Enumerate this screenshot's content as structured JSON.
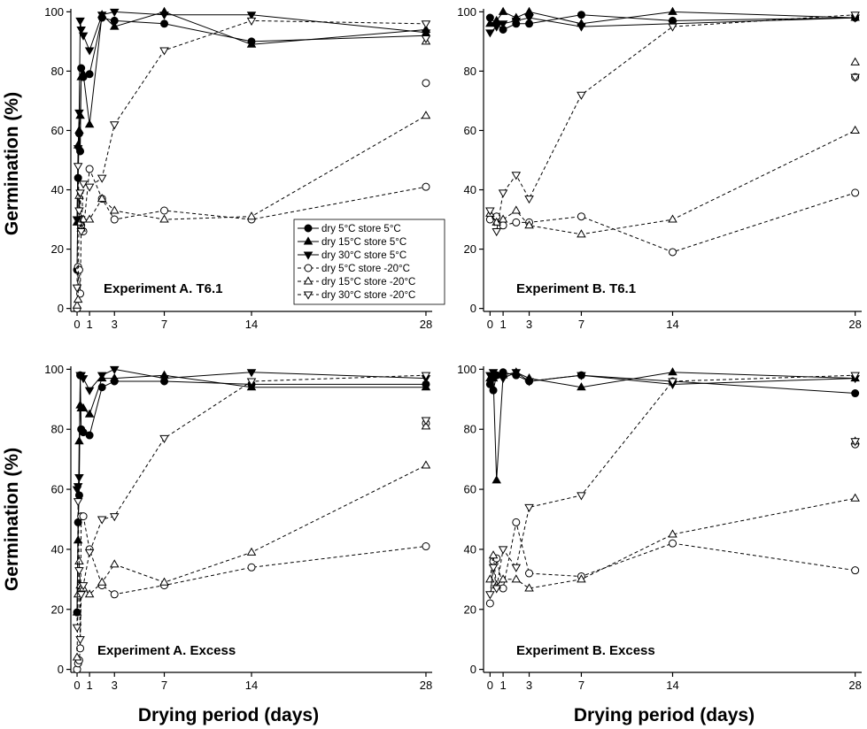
{
  "figure": {
    "ylabel": "Germination (%)",
    "xlabel": "Drying period (days)"
  },
  "legend": [
    {
      "label": "dry 5°C  store 5°C",
      "marker": "circle-filled",
      "dash": "solid"
    },
    {
      "label": "dry 15°C  store 5°C",
      "marker": "triangle-up-filled",
      "dash": "solid"
    },
    {
      "label": "dry 30°C  store 5°C",
      "marker": "triangle-down-filled",
      "dash": "solid"
    },
    {
      "label": "dry 5°C  store -20°C",
      "marker": "circle-open",
      "dash": "dashed"
    },
    {
      "label": "dry 15°C  store -20°C",
      "marker": "triangle-up-open",
      "dash": "dashed"
    },
    {
      "label": "dry 30°C  store -20°C",
      "marker": "triangle-down-open",
      "dash": "dashed"
    }
  ],
  "chart_data": [
    {
      "type": "line",
      "panel": "top-left",
      "title": "Experiment A. T6.1",
      "xlim": [
        -0.5,
        28.5
      ],
      "ylim": [
        -1,
        101
      ],
      "xticks": [
        0,
        1,
        3,
        7,
        14,
        28
      ],
      "yticks": [
        0,
        20,
        40,
        60,
        80,
        100
      ],
      "series": [
        {
          "name": "dry 5°C  store 5°C",
          "x": [
            0,
            0.08,
            0.17,
            0.25,
            0.33,
            0.5,
            1,
            2,
            3,
            7,
            14,
            28
          ],
          "y": [
            13,
            44,
            59,
            53,
            81,
            78,
            79,
            98,
            97,
            96,
            90,
            92
          ]
        },
        {
          "name": "dry 15°C  store 5°C",
          "x": [
            0,
            0.08,
            0.17,
            0.25,
            0.33,
            0.5,
            1,
            2,
            3,
            7,
            14,
            28
          ],
          "y": [
            29,
            55,
            60,
            65,
            78,
            79,
            62,
            99,
            95,
            100,
            89,
            94
          ]
        },
        {
          "name": "dry 30°C  store 5°C",
          "x": [
            0,
            0.08,
            0.17,
            0.25,
            0.33,
            0.5,
            1,
            2,
            3,
            7,
            14,
            28
          ],
          "y": [
            30,
            54,
            66,
            97,
            94,
            92,
            87,
            99,
            100,
            99,
            99,
            93
          ]
        },
        {
          "name": "dry 5°C  store -20°C",
          "x": [
            0,
            0.08,
            0.17,
            0.25,
            0.33,
            0.5,
            1,
            2,
            3,
            7,
            14,
            28
          ],
          "y": [
            0,
            14,
            13,
            5,
            28,
            26,
            47,
            37,
            30,
            33,
            30,
            41
          ]
        },
        {
          "name": "dry 15°C  store -20°C",
          "x": [
            0,
            0.08,
            0.17,
            0.25,
            0.33,
            0.5,
            1,
            2,
            3,
            7,
            14,
            28
          ],
          "y": [
            1,
            3,
            38,
            29,
            27,
            30,
            30,
            37,
            33,
            30,
            31,
            65
          ]
        },
        {
          "name": "dry 30°C  store -20°C",
          "x": [
            0,
            0.08,
            0.17,
            0.25,
            0.33,
            0.5,
            1,
            2,
            3,
            7,
            14,
            28
          ],
          "y": [
            7,
            48,
            33,
            39,
            26,
            42,
            41,
            44,
            62,
            87,
            97,
            96
          ]
        }
      ],
      "extra_points": [
        {
          "series": "dry 5°C  store -20°C",
          "x": 28,
          "y": 76
        },
        {
          "series": "dry 15°C  store -20°C",
          "x": 28,
          "y": 90
        },
        {
          "series": "dry 30°C  store -20°C",
          "x": 28,
          "y": 91
        }
      ]
    },
    {
      "type": "line",
      "panel": "top-right",
      "title": "Experiment B. T6.1",
      "xlim": [
        -0.5,
        28.5
      ],
      "ylim": [
        -1,
        101
      ],
      "xticks": [
        0,
        1,
        3,
        7,
        14,
        28
      ],
      "yticks": [
        0,
        20,
        40,
        60,
        80,
        100
      ],
      "series": [
        {
          "name": "dry 5°C  store 5°C",
          "x": [
            0,
            0.5,
            1,
            2,
            3,
            7,
            14,
            28
          ],
          "y": [
            98,
            96,
            94,
            96,
            96,
            99,
            97,
            98
          ]
        },
        {
          "name": "dry 15°C  store 5°C",
          "x": [
            0,
            0.5,
            1,
            2,
            3,
            7,
            14,
            28
          ],
          "y": [
            96,
            97,
            100,
            98,
            100,
            96,
            100,
            98
          ]
        },
        {
          "name": "dry 30°C  store 5°C",
          "x": [
            0,
            0.5,
            1,
            2,
            3,
            7,
            14,
            28
          ],
          "y": [
            93,
            95,
            96,
            97,
            98,
            95,
            96,
            98
          ]
        },
        {
          "name": "dry 5°C  store -20°C",
          "x": [
            0,
            0.5,
            1,
            2,
            3,
            7,
            14,
            28
          ],
          "y": [
            30,
            31,
            28,
            29,
            29,
            31,
            19,
            39
          ]
        },
        {
          "name": "dry 15°C  store -20°C",
          "x": [
            0,
            0.5,
            1,
            2,
            3,
            7,
            14,
            28
          ],
          "y": [
            32,
            29,
            30,
            33,
            28,
            25,
            30,
            60
          ]
        },
        {
          "name": "dry 30°C  store -20°C",
          "x": [
            0,
            0.5,
            1,
            2,
            3,
            7,
            14,
            28
          ],
          "y": [
            33,
            26,
            39,
            45,
            37,
            72,
            95,
            99
          ]
        }
      ],
      "extra_points": [
        {
          "series": "dry 5°C  store -20°C",
          "x": 28,
          "y": 78
        },
        {
          "series": "dry 15°C  store -20°C",
          "x": 28,
          "y": 83
        },
        {
          "series": "dry 30°C  store -20°C",
          "x": 28,
          "y": 78
        }
      ]
    },
    {
      "type": "line",
      "panel": "bottom-left",
      "title": "Experiment A. Excess",
      "xlim": [
        -0.5,
        28.5
      ],
      "ylim": [
        -1,
        101
      ],
      "xticks": [
        0,
        1,
        3,
        7,
        14,
        28
      ],
      "yticks": [
        0,
        20,
        40,
        60,
        80,
        100
      ],
      "series": [
        {
          "name": "dry 5°C  store 5°C",
          "x": [
            0,
            0.08,
            0.17,
            0.25,
            0.33,
            0.5,
            1,
            2,
            3,
            7,
            14,
            28
          ],
          "y": [
            19,
            49,
            58,
            98,
            80,
            79,
            78,
            94,
            96,
            96,
            95,
            95
          ]
        },
        {
          "name": "dry 15°C  store 5°C",
          "x": [
            0,
            0.08,
            0.17,
            0.25,
            0.33,
            0.5,
            1,
            2,
            3,
            7,
            14,
            28
          ],
          "y": [
            19,
            43,
            76,
            88,
            87,
            87,
            85,
            97,
            97,
            98,
            94,
            94
          ]
        },
        {
          "name": "dry 30°C  store 5°C",
          "x": [
            0,
            0.08,
            0.17,
            0.25,
            0.33,
            0.5,
            1,
            2,
            3,
            7,
            14,
            28
          ],
          "y": [
            60,
            61,
            64,
            98,
            98,
            97,
            93,
            98,
            100,
            97,
            99,
            97
          ]
        },
        {
          "name": "dry 5°C  store -20°C",
          "x": [
            0,
            0.08,
            0.17,
            0.25,
            0.33,
            0.5,
            1,
            2,
            3,
            7,
            14,
            28
          ],
          "y": [
            0,
            2,
            3,
            7,
            51,
            51,
            40,
            28,
            25,
            28,
            34,
            41
          ]
        },
        {
          "name": "dry 15°C  store -20°C",
          "x": [
            0,
            0.08,
            0.17,
            0.25,
            0.33,
            0.5,
            1,
            2,
            3,
            7,
            14,
            28
          ],
          "y": [
            4,
            25,
            36,
            28,
            27,
            27,
            25,
            29,
            35,
            29,
            39,
            68
          ]
        },
        {
          "name": "dry 30°C  store -20°C",
          "x": [
            0,
            0.08,
            0.17,
            0.25,
            0.33,
            0.5,
            1,
            2,
            3,
            7,
            14,
            28
          ],
          "y": [
            14,
            56,
            33,
            10,
            25,
            28,
            39,
            50,
            51,
            77,
            96,
            98
          ]
        }
      ],
      "extra_points": [
        {
          "series": "dry 5°C  store -20°C",
          "x": 28,
          "y": 82
        },
        {
          "series": "dry 15°C  store -20°C",
          "x": 28,
          "y": 81
        },
        {
          "series": "dry 30°C  store -20°C",
          "x": 28,
          "y": 83
        }
      ]
    },
    {
      "type": "line",
      "panel": "bottom-right",
      "title": "Experiment B. Excess",
      "xlim": [
        -0.5,
        28.5
      ],
      "ylim": [
        -1,
        101
      ],
      "xticks": [
        0,
        1,
        3,
        7,
        14,
        28
      ],
      "yticks": [
        0,
        20,
        40,
        60,
        80,
        100
      ],
      "series": [
        {
          "name": "dry 5°C  store 5°C",
          "x": [
            0,
            0.25,
            0.5,
            1,
            2,
            3,
            7,
            14,
            28
          ],
          "y": [
            95,
            93,
            98,
            99,
            98,
            96,
            98,
            96,
            92
          ]
        },
        {
          "name": "dry 15°C  store 5°C",
          "x": [
            0,
            0.25,
            0.5,
            1,
            2,
            3,
            7,
            14,
            28
          ],
          "y": [
            97,
            97,
            63,
            98,
            99,
            97,
            94,
            99,
            97
          ]
        },
        {
          "name": "dry 30°C  store 5°C",
          "x": [
            0,
            0.25,
            0.5,
            1,
            2,
            3,
            7,
            14,
            28
          ],
          "y": [
            98,
            99,
            98,
            97,
            99,
            96,
            98,
            95,
            97
          ]
        },
        {
          "name": "dry 5°C  store -20°C",
          "x": [
            0,
            0.25,
            0.5,
            1,
            2,
            3,
            7,
            14,
            28
          ],
          "y": [
            22,
            36,
            37,
            27,
            49,
            32,
            31,
            42,
            33
          ]
        },
        {
          "name": "dry 15°C  store -20°C",
          "x": [
            0,
            0.25,
            0.5,
            1,
            2,
            3,
            7,
            14,
            28
          ],
          "y": [
            30,
            38,
            28,
            30,
            30,
            27,
            30,
            45,
            57
          ]
        },
        {
          "name": "dry 30°C  store -20°C",
          "x": [
            0,
            0.25,
            0.5,
            1,
            2,
            3,
            7,
            14,
            28
          ],
          "y": [
            25,
            34,
            27,
            40,
            34,
            54,
            58,
            96,
            98
          ]
        }
      ],
      "extra_points": [
        {
          "series": "dry 5°C  store -20°C",
          "x": 28,
          "y": 75
        },
        {
          "series": "dry 15°C  store -20°C",
          "x": 28,
          "y": 76
        },
        {
          "series": "dry 30°C  store -20°C",
          "x": 28,
          "y": 76
        }
      ]
    }
  ]
}
